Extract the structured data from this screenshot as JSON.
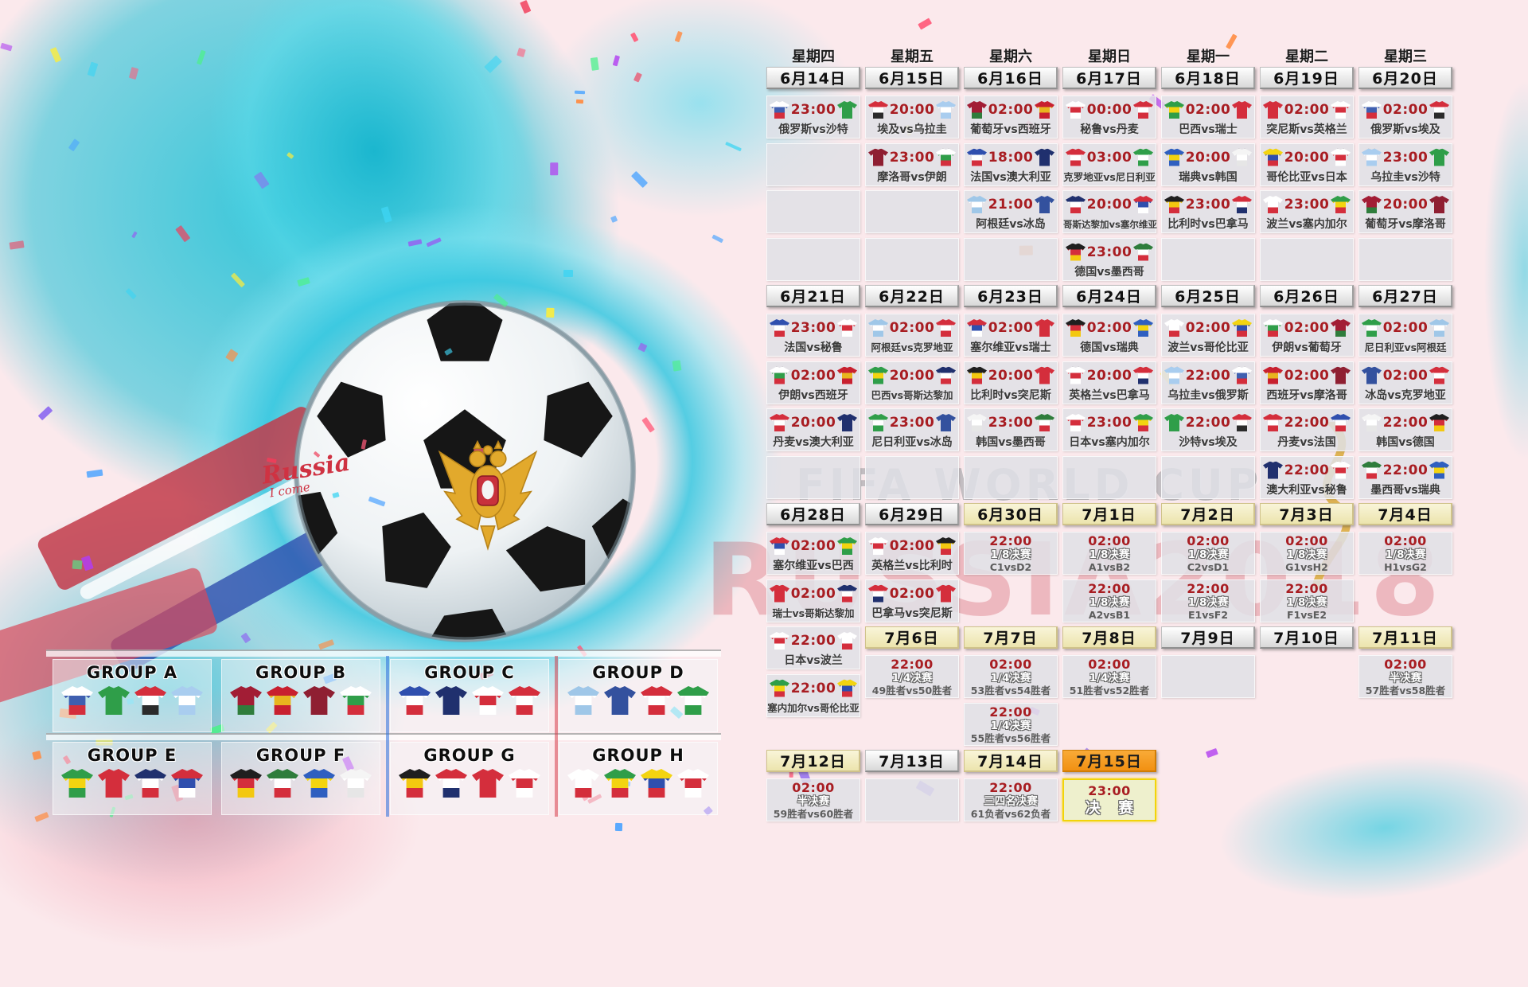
{
  "watermark": {
    "line1": "FIFA WORLD CUP",
    "line2": "RUSSIA2018"
  },
  "ball_text": {
    "line1": "Russia",
    "line2": "I come"
  },
  "colors": {
    "time_red": "#a81d22",
    "date_plain": "#e8e8e8",
    "date_yellow": "#f0e8b6",
    "date_orange": "#f59a23",
    "cell_gray": "#dfe1e6",
    "final_bg": "#eef0cd",
    "final_border": "#f2d409",
    "teal_splash": "#35c4d8",
    "pink_bg": "#fbe9ec"
  },
  "jersey_colors": {
    "russia": [
      "#ffffff",
      "#3f5fb0",
      "#d42e3c"
    ],
    "saudi-arabia": [
      "#2f9e49"
    ],
    "egypt": [
      "#d42e3c",
      "#ffffff",
      "#2b2b2b"
    ],
    "uruguay": [
      "#a9cdef",
      "#ffffff",
      "#a9cdef"
    ],
    "portugal": [
      "#a21d35",
      "#a21d35",
      "#2f7d3c"
    ],
    "spain": [
      "#c8202f",
      "#e8b51e",
      "#c8202f"
    ],
    "morocco": [
      "#8f1f32"
    ],
    "iran": [
      "#ffffff",
      "#2f9e49",
      "#d42e3c"
    ],
    "france": [
      "#2f4fae",
      "#ffffff",
      "#d42e3c"
    ],
    "australia": [
      "#20306e"
    ],
    "peru": [
      "#ffffff",
      "#d42e3c",
      "#ffffff"
    ],
    "denmark": [
      "#d42e3c",
      "#ffffff",
      "#d42e3c"
    ],
    "argentina": [
      "#9fc7e8",
      "#ffffff",
      "#9fc7e8"
    ],
    "iceland": [
      "#33519e"
    ],
    "croatia": [
      "#d42e3c",
      "#ffffff",
      "#d42e3c"
    ],
    "nigeria": [
      "#2f9e49",
      "#ffffff",
      "#2f9e49"
    ],
    "brazil": [
      "#2f9e49",
      "#f3d410",
      "#2f9e49"
    ],
    "switzerland": [
      "#d42e3c"
    ],
    "costa-rica": [
      "#20306e",
      "#ffffff",
      "#d42e3c"
    ],
    "serbia": [
      "#d42e3c",
      "#2f4fae",
      "#ffffff"
    ],
    "germany": [
      "#1f1f1f",
      "#d42e3c",
      "#f3c810"
    ],
    "mexico": [
      "#2f7d3c",
      "#ffffff",
      "#d42e3c"
    ],
    "sweden": [
      "#2f5fc0",
      "#f3d410",
      "#2f5fc0"
    ],
    "south-korea": [
      "#f5f5f5",
      "#ffffff",
      "#e6e6e6"
    ],
    "belgium": [
      "#1f1f1f",
      "#f3c810",
      "#d42e3c"
    ],
    "panama": [
      "#d42e3c",
      "#ffffff",
      "#20306e"
    ],
    "tunisia": [
      "#d42e3c"
    ],
    "england": [
      "#ffffff",
      "#d42e3c",
      "#ffffff"
    ],
    "poland": [
      "#ffffff",
      "#ffffff",
      "#d42e3c"
    ],
    "senegal": [
      "#2f9e49",
      "#f3d410",
      "#d42e3c"
    ],
    "colombia": [
      "#f3d410",
      "#2f4fae",
      "#d42e3c"
    ],
    "japan": [
      "#ffffff",
      "#d42e3c",
      "#ffffff"
    ]
  },
  "calendar": {
    "columns": [
      [
        {
          "t": "wd",
          "text": "星期四"
        },
        {
          "t": "date",
          "text": "6月14日",
          "style": "n"
        },
        {
          "t": "m",
          "time": "23:00",
          "teams": "俄罗斯vs沙特",
          "j": [
            "russia",
            "saudi-arabia"
          ]
        },
        {
          "t": "e"
        },
        {
          "t": "e"
        },
        {
          "t": "e"
        },
        {
          "t": "date",
          "text": "6月21日",
          "style": "n"
        },
        {
          "t": "m",
          "time": "23:00",
          "teams": "法国vs秘鲁",
          "j": [
            "france",
            "peru"
          ]
        },
        {
          "t": "m",
          "time": "02:00",
          "teams": "伊朗vs西班牙",
          "j": [
            "iran",
            "spain"
          ]
        },
        {
          "t": "m",
          "time": "20:00",
          "teams": "丹麦vs澳大利亚",
          "j": [
            "denmark",
            "australia"
          ]
        },
        {
          "t": "e"
        },
        {
          "t": "date",
          "text": "6月28日",
          "style": "n"
        },
        {
          "t": "m",
          "time": "02:00",
          "teams": "塞尔维亚vs巴西",
          "j": [
            "serbia",
            "brazil"
          ]
        },
        {
          "t": "m",
          "time": "02:00",
          "teams": "瑞士vs哥斯达黎加",
          "j": [
            "switzerland",
            "costa-rica"
          ]
        },
        {
          "t": "m",
          "time": "22:00",
          "teams": "日本vs波兰",
          "j": [
            "japan",
            "poland"
          ]
        },
        {
          "t": "m",
          "time": "22:00",
          "teams": "塞内加尔vs哥伦比亚",
          "j": [
            "senegal",
            "colombia"
          ]
        },
        {
          "t": "sp",
          "h": 36
        },
        {
          "t": "date",
          "text": "7月12日",
          "style": "y"
        },
        {
          "t": "ko",
          "time": "02:00",
          "stage": "半决赛",
          "pair": "59胜者vs60胜者"
        }
      ],
      [
        {
          "t": "wd",
          "text": "星期五"
        },
        {
          "t": "date",
          "text": "6月15日",
          "style": "n"
        },
        {
          "t": "m",
          "time": "20:00",
          "teams": "埃及vs乌拉圭",
          "j": [
            "egypt",
            "uruguay"
          ]
        },
        {
          "t": "m",
          "time": "23:00",
          "teams": "摩洛哥vs伊朗",
          "j": [
            "morocco",
            "iran"
          ]
        },
        {
          "t": "e"
        },
        {
          "t": "e"
        },
        {
          "t": "date",
          "text": "6月22日",
          "style": "n"
        },
        {
          "t": "m",
          "time": "02:00",
          "teams": "阿根廷vs克罗地亚",
          "j": [
            "argentina",
            "croatia"
          ]
        },
        {
          "t": "m",
          "time": "20:00",
          "teams": "巴西vs哥斯达黎加",
          "j": [
            "brazil",
            "costa-rica"
          ]
        },
        {
          "t": "m",
          "time": "23:00",
          "teams": "尼日利亚vs冰岛",
          "j": [
            "nigeria",
            "iceland"
          ]
        },
        {
          "t": "e"
        },
        {
          "t": "date",
          "text": "6月29日",
          "style": "n"
        },
        {
          "t": "m",
          "time": "02:00",
          "teams": "英格兰vs比利时",
          "j": [
            "england",
            "belgium"
          ]
        },
        {
          "t": "m",
          "time": "02:00",
          "teams": "巴拿马vs突尼斯",
          "j": [
            "panama",
            "tunisia"
          ]
        },
        {
          "t": "date",
          "text": "7月6日",
          "style": "y"
        },
        {
          "t": "ko",
          "time": "22:00",
          "stage": "1/4决赛",
          "pair": "49胜者vs50胜者"
        },
        {
          "t": "b"
        },
        {
          "t": "date",
          "text": "7月13日",
          "style": "n"
        },
        {
          "t": "e"
        }
      ],
      [
        {
          "t": "wd",
          "text": "星期六"
        },
        {
          "t": "date",
          "text": "6月16日",
          "style": "n"
        },
        {
          "t": "m",
          "time": "02:00",
          "teams": "葡萄牙vs西班牙",
          "j": [
            "portugal",
            "spain"
          ]
        },
        {
          "t": "m",
          "time": "18:00",
          "teams": "法国vs澳大利亚",
          "j": [
            "france",
            "australia"
          ]
        },
        {
          "t": "m",
          "time": "21:00",
          "teams": "阿根廷vs冰岛",
          "j": [
            "argentina",
            "iceland"
          ]
        },
        {
          "t": "e"
        },
        {
          "t": "date",
          "text": "6月23日",
          "style": "n"
        },
        {
          "t": "m",
          "time": "02:00",
          "teams": "塞尔维亚vs瑞士",
          "j": [
            "serbia",
            "switzerland"
          ]
        },
        {
          "t": "m",
          "time": "20:00",
          "teams": "比利时vs突尼斯",
          "j": [
            "belgium",
            "tunisia"
          ]
        },
        {
          "t": "m",
          "time": "23:00",
          "teams": "韩国vs墨西哥",
          "j": [
            "south-korea",
            "mexico"
          ]
        },
        {
          "t": "e"
        },
        {
          "t": "date",
          "text": "6月30日",
          "style": "y"
        },
        {
          "t": "ko",
          "time": "22:00",
          "stage": "1/8决赛",
          "pair": "C1vsD2"
        },
        {
          "t": "b"
        },
        {
          "t": "date",
          "text": "7月7日",
          "style": "y"
        },
        {
          "t": "ko",
          "time": "02:00",
          "stage": "1/4决赛",
          "pair": "53胜者vs54胜者"
        },
        {
          "t": "ko",
          "time": "22:00",
          "stage": "1/4决赛",
          "pair": "55胜者vs56胜者"
        },
        {
          "t": "date",
          "text": "7月14日",
          "style": "y"
        },
        {
          "t": "ko",
          "time": "22:00",
          "stage": "三四名决赛",
          "pair": "61负者vs62负者"
        }
      ],
      [
        {
          "t": "wd",
          "text": "星期日"
        },
        {
          "t": "date",
          "text": "6月17日",
          "style": "n"
        },
        {
          "t": "m",
          "time": "00:00",
          "teams": "秘鲁vs丹麦",
          "j": [
            "peru",
            "denmark"
          ]
        },
        {
          "t": "m",
          "time": "03:00",
          "teams": "克罗地亚vs尼日利亚",
          "j": [
            "croatia",
            "nigeria"
          ]
        },
        {
          "t": "m",
          "time": "20:00",
          "teams": "哥斯达黎加vs塞尔维亚",
          "j": [
            "costa-rica",
            "serbia"
          ]
        },
        {
          "t": "m",
          "time": "23:00",
          "teams": "德国vs墨西哥",
          "j": [
            "germany",
            "mexico"
          ]
        },
        {
          "t": "date",
          "text": "6月24日",
          "style": "n"
        },
        {
          "t": "m",
          "time": "02:00",
          "teams": "德国vs瑞典",
          "j": [
            "germany",
            "sweden"
          ]
        },
        {
          "t": "m",
          "time": "20:00",
          "teams": "英格兰vs巴拿马",
          "j": [
            "england",
            "panama"
          ]
        },
        {
          "t": "m",
          "time": "23:00",
          "teams": "日本vs塞内加尔",
          "j": [
            "japan",
            "senegal"
          ]
        },
        {
          "t": "e"
        },
        {
          "t": "date",
          "text": "7月1日",
          "style": "y"
        },
        {
          "t": "ko",
          "time": "02:00",
          "stage": "1/8决赛",
          "pair": "A1vsB2"
        },
        {
          "t": "ko",
          "time": "22:00",
          "stage": "1/8决赛",
          "pair": "A2vsB1"
        },
        {
          "t": "date",
          "text": "7月8日",
          "style": "y"
        },
        {
          "t": "ko",
          "time": "02:00",
          "stage": "1/4决赛",
          "pair": "51胜者vs52胜者"
        },
        {
          "t": "b"
        },
        {
          "t": "date",
          "text": "7月15日",
          "style": "o"
        },
        {
          "t": "fin",
          "time": "23:00",
          "stage": "决 赛"
        }
      ],
      [
        {
          "t": "wd",
          "text": "星期一"
        },
        {
          "t": "date",
          "text": "6月18日",
          "style": "n"
        },
        {
          "t": "m",
          "time": "02:00",
          "teams": "巴西vs瑞士",
          "j": [
            "brazil",
            "switzerland"
          ]
        },
        {
          "t": "m",
          "time": "20:00",
          "teams": "瑞典vs韩国",
          "j": [
            "sweden",
            "south-korea"
          ]
        },
        {
          "t": "m",
          "time": "23:00",
          "teams": "比利时vs巴拿马",
          "j": [
            "belgium",
            "panama"
          ]
        },
        {
          "t": "e"
        },
        {
          "t": "date",
          "text": "6月25日",
          "style": "n"
        },
        {
          "t": "m",
          "time": "02:00",
          "teams": "波兰vs哥伦比亚",
          "j": [
            "poland",
            "colombia"
          ]
        },
        {
          "t": "m",
          "time": "22:00",
          "teams": "乌拉圭vs俄罗斯",
          "j": [
            "uruguay",
            "russia"
          ]
        },
        {
          "t": "m",
          "time": "22:00",
          "teams": "沙特vs埃及",
          "j": [
            "saudi-arabia",
            "egypt"
          ]
        },
        {
          "t": "e"
        },
        {
          "t": "date",
          "text": "7月2日",
          "style": "y"
        },
        {
          "t": "ko",
          "time": "02:00",
          "stage": "1/8决赛",
          "pair": "C2vsD1"
        },
        {
          "t": "ko",
          "time": "22:00",
          "stage": "1/8决赛",
          "pair": "E1vsF2"
        },
        {
          "t": "date",
          "text": "7月9日",
          "style": "n"
        },
        {
          "t": "e"
        }
      ],
      [
        {
          "t": "wd",
          "text": "星期二"
        },
        {
          "t": "date",
          "text": "6月19日",
          "style": "n"
        },
        {
          "t": "m",
          "time": "02:00",
          "teams": "突尼斯vs英格兰",
          "j": [
            "tunisia",
            "england"
          ]
        },
        {
          "t": "m",
          "time": "20:00",
          "teams": "哥伦比亚vs日本",
          "j": [
            "colombia",
            "japan"
          ]
        },
        {
          "t": "m",
          "time": "23:00",
          "teams": "波兰vs塞内加尔",
          "j": [
            "poland",
            "senegal"
          ]
        },
        {
          "t": "e"
        },
        {
          "t": "date",
          "text": "6月26日",
          "style": "n"
        },
        {
          "t": "m",
          "time": "02:00",
          "teams": "伊朗vs葡萄牙",
          "j": [
            "iran",
            "portugal"
          ]
        },
        {
          "t": "m",
          "time": "02:00",
          "teams": "西班牙vs摩洛哥",
          "j": [
            "spain",
            "morocco"
          ]
        },
        {
          "t": "m",
          "time": "22:00",
          "teams": "丹麦vs法国",
          "j": [
            "denmark",
            "france"
          ]
        },
        {
          "t": "m",
          "time": "22:00",
          "teams": "澳大利亚vs秘鲁",
          "j": [
            "australia",
            "peru"
          ]
        },
        {
          "t": "date",
          "text": "7月3日",
          "style": "y"
        },
        {
          "t": "ko",
          "time": "02:00",
          "stage": "1/8决赛",
          "pair": "G1vsH2"
        },
        {
          "t": "ko",
          "time": "22:00",
          "stage": "1/8决赛",
          "pair": "F1vsE2"
        },
        {
          "t": "date",
          "text": "7月10日",
          "style": "n"
        }
      ],
      [
        {
          "t": "wd",
          "text": "星期三"
        },
        {
          "t": "date",
          "text": "6月20日",
          "style": "n"
        },
        {
          "t": "m",
          "time": "02:00",
          "teams": "俄罗斯vs埃及",
          "j": [
            "russia",
            "egypt"
          ]
        },
        {
          "t": "m",
          "time": "23:00",
          "teams": "乌拉圭vs沙特",
          "j": [
            "uruguay",
            "saudi-arabia"
          ]
        },
        {
          "t": "m",
          "time": "20:00",
          "teams": "葡萄牙vs摩洛哥",
          "j": [
            "portugal",
            "morocco"
          ]
        },
        {
          "t": "e"
        },
        {
          "t": "date",
          "text": "6月27日",
          "style": "n"
        },
        {
          "t": "m",
          "time": "02:00",
          "teams": "尼日利亚vs阿根廷",
          "j": [
            "nigeria",
            "argentina"
          ]
        },
        {
          "t": "m",
          "time": "02:00",
          "teams": "冰岛vs克罗地亚",
          "j": [
            "iceland",
            "croatia"
          ]
        },
        {
          "t": "m",
          "time": "22:00",
          "teams": "韩国vs德国",
          "j": [
            "south-korea",
            "germany"
          ]
        },
        {
          "t": "m",
          "time": "22:00",
          "teams": "墨西哥vs瑞典",
          "j": [
            "mexico",
            "sweden"
          ]
        },
        {
          "t": "date",
          "text": "7月4日",
          "style": "y"
        },
        {
          "t": "ko",
          "time": "02:00",
          "stage": "1/8决赛",
          "pair": "H1vsG2"
        },
        {
          "t": "b"
        },
        {
          "t": "date",
          "text": "7月11日",
          "style": "y"
        },
        {
          "t": "ko",
          "time": "02:00",
          "stage": "半决赛",
          "pair": "57胜者vs58胜者"
        }
      ]
    ]
  },
  "groups": [
    {
      "label": "GROUP A",
      "teams": [
        "russia",
        "saudi-arabia",
        "egypt",
        "uruguay"
      ]
    },
    {
      "label": "GROUP B",
      "teams": [
        "portugal",
        "spain",
        "morocco",
        "iran"
      ]
    },
    {
      "label": "GROUP C",
      "teams": [
        "france",
        "australia",
        "peru",
        "denmark"
      ]
    },
    {
      "label": "GROUP D",
      "teams": [
        "argentina",
        "iceland",
        "croatia",
        "nigeria"
      ]
    },
    {
      "label": "GROUP E",
      "teams": [
        "brazil",
        "switzerland",
        "costa-rica",
        "serbia"
      ]
    },
    {
      "label": "GROUP F",
      "teams": [
        "germany",
        "mexico",
        "sweden",
        "south-korea"
      ]
    },
    {
      "label": "GROUP G",
      "teams": [
        "belgium",
        "panama",
        "tunisia",
        "england"
      ]
    },
    {
      "label": "GROUP H",
      "teams": [
        "poland",
        "senegal",
        "colombia",
        "japan"
      ]
    }
  ]
}
